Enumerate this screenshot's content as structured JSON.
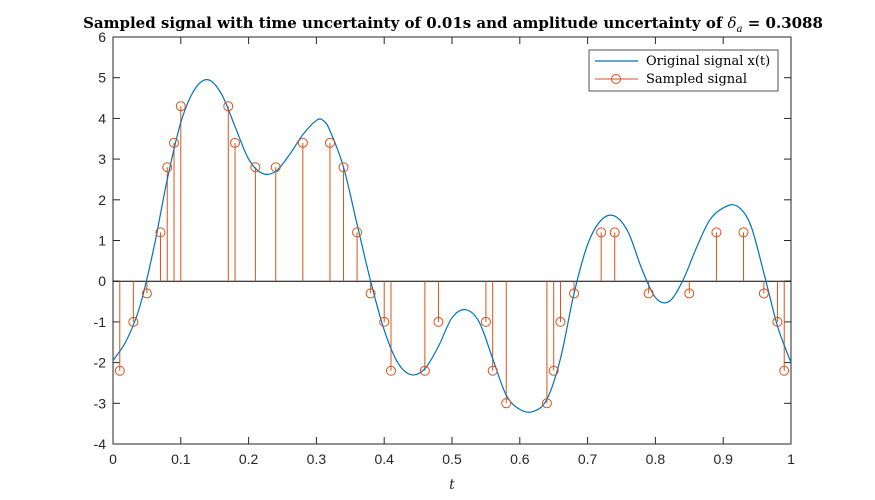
{
  "chart_data": {
    "type": "line",
    "title": {
      "prefix": "Sampled signal with time uncertainty of 0.01s and amplitude uncertainty of ",
      "symbol": "δ",
      "subscript": "a",
      "suffix": " = 0.3088"
    },
    "xlabel": "t",
    "ylabel": "",
    "xlim": [
      0,
      1
    ],
    "ylim": [
      -4,
      6
    ],
    "x_ticks": [
      0,
      0.1,
      0.2,
      0.3,
      0.4,
      0.5,
      0.6,
      0.7,
      0.8,
      0.9,
      1
    ],
    "x_tick_labels": [
      "0",
      "0.1",
      "0.2",
      "0.3",
      "0.4",
      "0.5",
      "0.6",
      "0.7",
      "0.8",
      "0.9",
      "1"
    ],
    "y_ticks": [
      -4,
      -3,
      -2,
      -1,
      0,
      1,
      2,
      3,
      4,
      5,
      6
    ],
    "y_tick_labels": [
      "-4",
      "-3",
      "-2",
      "-1",
      "0",
      "1",
      "2",
      "3",
      "4",
      "5",
      "6"
    ],
    "legend_position": "top-right",
    "grid": false,
    "series": [
      {
        "name": "Original signal x(t)",
        "style": "line",
        "color": "#0072bd",
        "x": [
          0,
          0.02,
          0.04,
          0.06,
          0.08,
          0.1,
          0.12,
          0.14,
          0.16,
          0.18,
          0.2,
          0.22,
          0.24,
          0.26,
          0.28,
          0.3,
          0.31,
          0.32,
          0.34,
          0.36,
          0.38,
          0.4,
          0.42,
          0.44,
          0.46,
          0.48,
          0.5,
          0.52,
          0.54,
          0.56,
          0.58,
          0.6,
          0.62,
          0.64,
          0.66,
          0.68,
          0.7,
          0.72,
          0.74,
          0.76,
          0.78,
          0.8,
          0.82,
          0.84,
          0.86,
          0.88,
          0.9,
          0.92,
          0.94,
          0.96,
          0.98,
          1.0
        ],
        "y": [
          -1.95,
          -1.45,
          -0.6,
          0.8,
          2.5,
          3.9,
          4.7,
          4.95,
          4.6,
          3.8,
          3.0,
          2.65,
          2.7,
          3.1,
          3.6,
          3.95,
          3.95,
          3.7,
          2.8,
          1.4,
          0.0,
          -1.2,
          -2.0,
          -2.3,
          -2.15,
          -1.6,
          -0.9,
          -0.7,
          -1.0,
          -1.9,
          -2.8,
          -3.15,
          -3.2,
          -2.9,
          -1.9,
          -0.3,
          0.9,
          1.5,
          1.6,
          1.2,
          0.3,
          -0.4,
          -0.5,
          0.0,
          0.8,
          1.5,
          1.8,
          1.85,
          1.4,
          0.2,
          -1.1,
          -2.0
        ]
      },
      {
        "name": "Sampled signal",
        "style": "stem",
        "color": "#d95319",
        "x": [
          0.01,
          0.03,
          0.05,
          0.07,
          0.08,
          0.09,
          0.1,
          0.17,
          0.18,
          0.21,
          0.24,
          0.28,
          0.32,
          0.34,
          0.36,
          0.38,
          0.4,
          0.41,
          0.46,
          0.48,
          0.55,
          0.56,
          0.58,
          0.64,
          0.65,
          0.66,
          0.68,
          0.72,
          0.74,
          0.79,
          0.85,
          0.89,
          0.93,
          0.96,
          0.98,
          0.99
        ],
        "y": [
          -2.2,
          -1.0,
          -0.3,
          1.2,
          2.8,
          3.4,
          4.3,
          4.3,
          3.4,
          2.8,
          2.8,
          3.4,
          3.4,
          2.8,
          1.2,
          -0.3,
          -1.0,
          -2.2,
          -2.2,
          -1.0,
          -1.0,
          -2.2,
          -3.0,
          -3.0,
          -2.2,
          -1.0,
          -0.3,
          1.2,
          1.2,
          -0.3,
          -0.3,
          1.2,
          1.2,
          -0.3,
          -1.0,
          -2.2
        ]
      }
    ]
  }
}
